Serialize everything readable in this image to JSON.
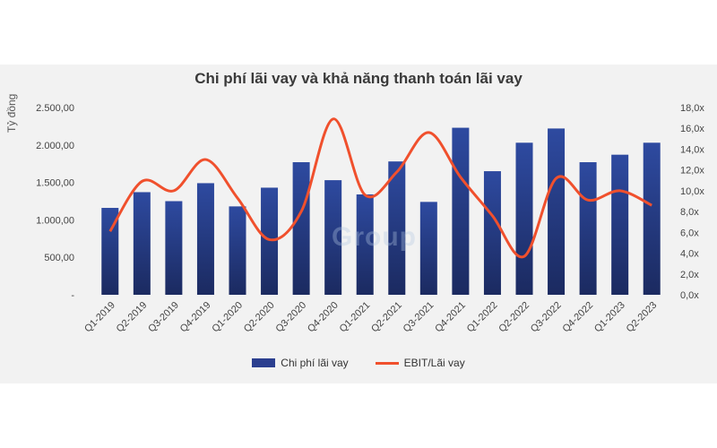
{
  "chart_data": {
    "type": "bar",
    "title": "Chi phí lãi vay và khả năng thanh toán lãi vay",
    "ylabel": "Tỷ đồng",
    "categories": [
      "Q1-2019",
      "Q2-2019",
      "Q3-2019",
      "Q4-2019",
      "Q1-2020",
      "Q2-2020",
      "Q3-2020",
      "Q4-2020",
      "Q1-2021",
      "Q2-2021",
      "Q3-2021",
      "Q4-2021",
      "Q1-2022",
      "Q2-2022",
      "Q3-2022",
      "Q4-2022",
      "Q1-2023",
      "Q2-2023"
    ],
    "series": [
      {
        "name": "Chi phí lãi vay",
        "type": "bar",
        "axis": "left",
        "color": "#2b3f8f",
        "values": [
          1160,
          1370,
          1250,
          1490,
          1180,
          1430,
          1770,
          1530,
          1340,
          1780,
          1240,
          2230,
          1650,
          2030,
          2220,
          1770,
          1870,
          2030
        ]
      },
      {
        "name": "EBIT/Lãi vay",
        "type": "line",
        "axis": "right",
        "color": "#f0502d",
        "values": [
          6.1,
          10.9,
          10.0,
          13.0,
          9.3,
          5.3,
          8.0,
          16.9,
          9.6,
          11.8,
          15.6,
          11.3,
          7.6,
          3.7,
          11.2,
          9.1,
          10.0,
          8.6
        ]
      }
    ],
    "ylim_left": [
      0,
      2500
    ],
    "ylim_right": [
      0,
      18
    ],
    "y_ticks_left": [
      "-",
      "500,00",
      "1.000,00",
      "1.500,00",
      "2.000,00",
      "2.500,00"
    ],
    "y_ticks_right": [
      "0,0x",
      "2,0x",
      "4,0x",
      "6,0x",
      "8,0x",
      "10,0x",
      "12,0x",
      "14,0x",
      "16,0x",
      "18,0x"
    ],
    "legend_position": "bottom",
    "grid": false
  },
  "watermark": "Group"
}
